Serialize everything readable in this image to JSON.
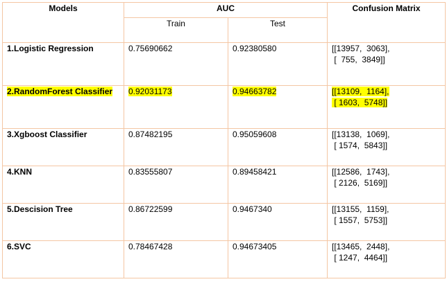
{
  "table": {
    "headers": {
      "models": "Models",
      "auc": "AUC",
      "confusion_matrix": "Confusion Matrix",
      "train": "Train",
      "test": "Test"
    },
    "highlight_color": "#ffff00",
    "border_color": "#f4c6a3",
    "rows": [
      {
        "model": "1.Logistic Regression",
        "train": "0.75690662",
        "test": "0.92380580",
        "cm_line1": "[[13957,  3063],",
        "cm_line2": " [  755,  3849]]",
        "highlighted": false
      },
      {
        "model": "2.RandomForest Classifier",
        "train": "0.92031173",
        "test": "0.94663782",
        "cm_line1": "[[13109,  1164],",
        "cm_line2": " [ 1603,  5748]]",
        "highlighted": true
      },
      {
        "model": "3.Xgboost Classifier",
        "train": "0.87482195",
        "test": "0.95059608",
        "cm_line1": "[[13138,  1069],",
        "cm_line2": " [ 1574,  5843]]",
        "highlighted": false
      },
      {
        "model": "4.KNN",
        "train": "0.83555807",
        "test": "0.89458421",
        "cm_line1": "[[12586,  1743],",
        "cm_line2": " [ 2126,  5169]]",
        "highlighted": false
      },
      {
        "model": "5.Descision Tree",
        "train": "0.86722599",
        "test": "0.9467340",
        "cm_line1": "[[13155,  1159],",
        "cm_line2": " [ 1557,  5753]]",
        "highlighted": false
      },
      {
        "model": "6.SVC",
        "train": "0.78467428",
        "test": "0.94673405",
        "cm_line1": "[[13465,  2448],",
        "cm_line2": " [ 1247,  4464]]",
        "highlighted": false
      }
    ]
  }
}
